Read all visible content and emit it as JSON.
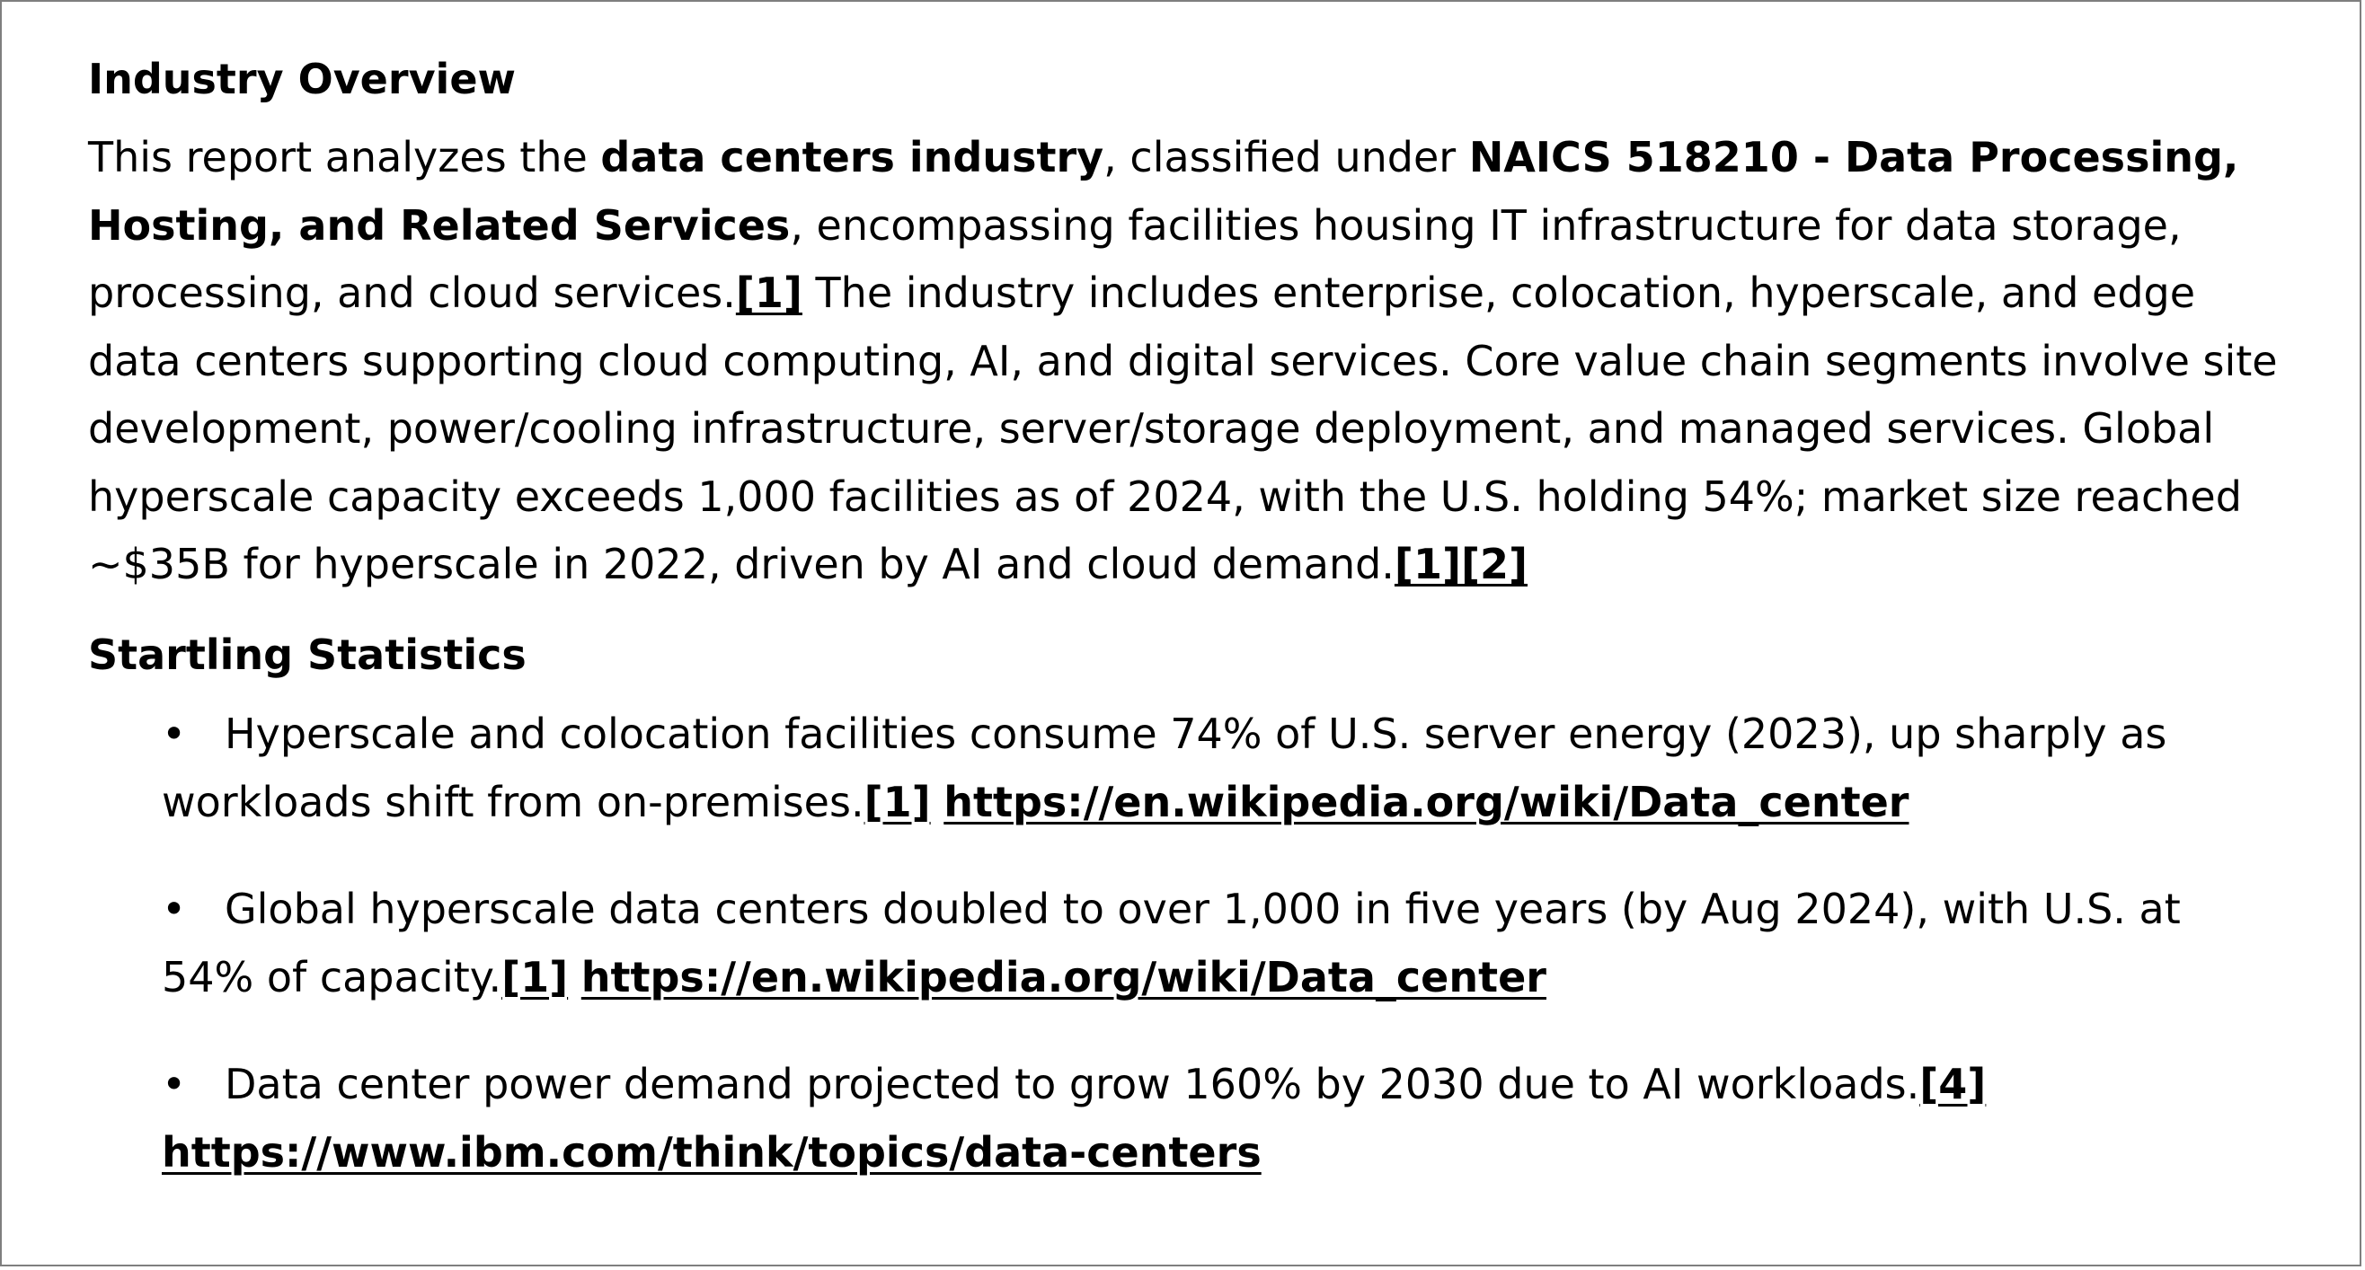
{
  "section1": {
    "heading": "Industry Overview",
    "p_intro": "This report analyzes the ",
    "p_bold1": "data centers industry",
    "p_mid1": ", classified under ",
    "p_bold2": "NAICS 518210 - Data Processing, Hosting, and Related Services",
    "p_mid2": ", encompassing facilities housing IT infrastructure for data storage, processing, and cloud services.",
    "ref1": "[1]",
    "p_rest": " The industry includes enterprise, colocation, hyperscale, and edge data centers supporting cloud computing, AI, and digital services. Core value chain segments involve site development, power/cooling infrastructure, server/storage deployment, and managed services. Global hyperscale capacity exceeds 1,000 facilities as of 2024, with the U.S. holding 54%; market size reached ~$35B for hyperscale in 2022, driven by AI and cloud demand.",
    "ref_end1": "[1]",
    "ref_end2": "[2]"
  },
  "section2": {
    "heading": "Startling Statistics",
    "bullet_glyph": "•",
    "items": [
      {
        "text": "Hyperscale and colocation facilities consume 74% of U.S. server energy (2023), up sharply as workloads shift from on-premises.",
        "ref": "[1]",
        "url": "https://en.wikipedia.org/wiki/Data_center"
      },
      {
        "text": "Global hyperscale data centers doubled to over 1,000 in five years (by Aug 2024), with U.S. at 54% of capacity.",
        "ref": "[1]",
        "url": "https://en.wikipedia.org/wiki/Data_center"
      },
      {
        "text": "Data center power demand projected to grow 160% by 2030 due to AI workloads.",
        "ref": "[4]",
        "url": "https://www.ibm.com/think/topics/data-centers"
      }
    ]
  }
}
